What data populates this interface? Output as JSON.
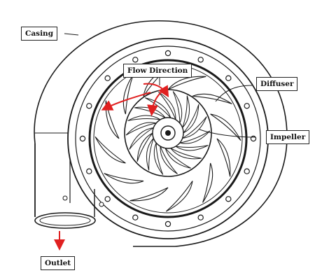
{
  "labels": {
    "casing": "Casing",
    "flow_direction": "Flow Direction",
    "diffuser": "Diffuser",
    "impeller": "Impeller",
    "outlet": "Outlet"
  },
  "colors": {
    "line": "#1a1a1a",
    "arrow": "#e02020"
  },
  "counts": {
    "diffuser_vanes": 12,
    "impeller_blades": 18,
    "bolt_holes": 16
  }
}
